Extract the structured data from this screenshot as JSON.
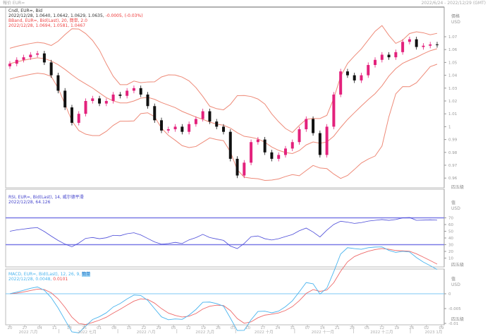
{
  "header": {
    "source": "報价 EUR=",
    "range": "2022/6/24 - 2022/12/29 (GMT)"
  },
  "price_panel": {
    "legend1": "Cndl, EUR=, Bid",
    "legend2_values": "2022/12/28, 1.0640, 1.0642, 1.0629, 1.0635,",
    "legend2_change": "-0.0005, (-0.03%)",
    "legend3": "BBand, EUR=, Bid(Last), 20, 簡単, 2.0",
    "legend4": "2022/12/28, 1.0694, 1.0581, 1.0467",
    "axis_title": "價格",
    "axis_unit": "USD",
    "axis_bottom": "四五級"
  },
  "rsi_panel": {
    "legend1": "RSI, EUR=, Bid(Last), 14, 威尔德平滑",
    "legend2": "2022/12/28, 64.126",
    "axis_title": "值",
    "axis_unit": "USD",
    "axis_bottom": "四五級"
  },
  "macd_panel": {
    "legend1": "MACD, EUR=, Bid(Last), 12, 26, 9, ",
    "legend1_highlight": "簡単",
    "legend2_a": "2022/12/28, 0.0048,",
    "legend2_b": "0.0101",
    "axis_title": "值",
    "axis_unit": "USD",
    "axis_bottom": "四五級"
  },
  "colors": {
    "up": "#e3217c",
    "down": "#111111",
    "band": "#ee8a78",
    "rsi": "#4a4ad8",
    "macd": "#4ab4ee",
    "signal": "#ee6a6a"
  },
  "chart_data": [
    {
      "type": "candlestick",
      "ylim": [
        0.955,
        1.075
      ],
      "yticks": [
        "1.07",
        "1.06",
        "1.05",
        "1.04",
        "1.03",
        "1.02",
        "1.01",
        "1",
        "0.99",
        "0.98",
        "0.97",
        "0.96"
      ],
      "close": [
        1.049,
        1.052,
        1.054,
        1.056,
        1.057,
        1.05,
        1.04,
        1.028,
        1.015,
        1.003,
        1.01,
        1.02,
        1.022,
        1.018,
        1.02,
        1.025,
        1.024,
        1.028,
        1.03,
        1.025,
        1.016,
        1.005,
        0.997,
        0.998,
        1.0,
        0.996,
        1.002,
        1.006,
        1.012,
        1.004,
        1.0,
        0.996,
        0.975,
        0.962,
        0.972,
        0.988,
        0.99,
        0.98,
        0.975,
        0.978,
        0.983,
        0.988,
        0.998,
        1.006,
        0.995,
        0.978,
        1.0,
        1.025,
        1.043,
        1.04,
        1.036,
        1.04,
        1.048,
        1.052,
        1.056,
        1.054,
        1.058,
        1.066,
        1.068,
        1.062,
        1.063,
        1.064,
        1.0635
      ]
    },
    {
      "type": "line",
      "name": "RSI",
      "ylim": [
        0,
        100
      ],
      "yticks": [
        "70",
        "60",
        "50",
        "40",
        "30",
        "20",
        "10"
      ],
      "levels": [
        70,
        30
      ]
    },
    {
      "type": "line",
      "name": "MACD",
      "ylim": [
        -0.011,
        0.0075
      ],
      "yticks": [
        "0",
        "-0.005",
        "-0.01"
      ]
    }
  ],
  "xaxis": {
    "days": [
      "20",
      "27",
      "04",
      "11",
      "18",
      "25",
      "01",
      "08",
      "15",
      "22",
      "29",
      "05",
      "12",
      "19",
      "26",
      "03",
      "10",
      "17",
      "24",
      "31",
      "07",
      "14",
      "21",
      "28",
      "05",
      "12",
      "19",
      "26",
      "02",
      "09"
    ],
    "months": [
      "2022 六月",
      "2022 七月",
      "2022 八月",
      "2022 九月",
      "2022 十月",
      "2022 十一月",
      "2022 十二月",
      "2023 1月"
    ]
  }
}
